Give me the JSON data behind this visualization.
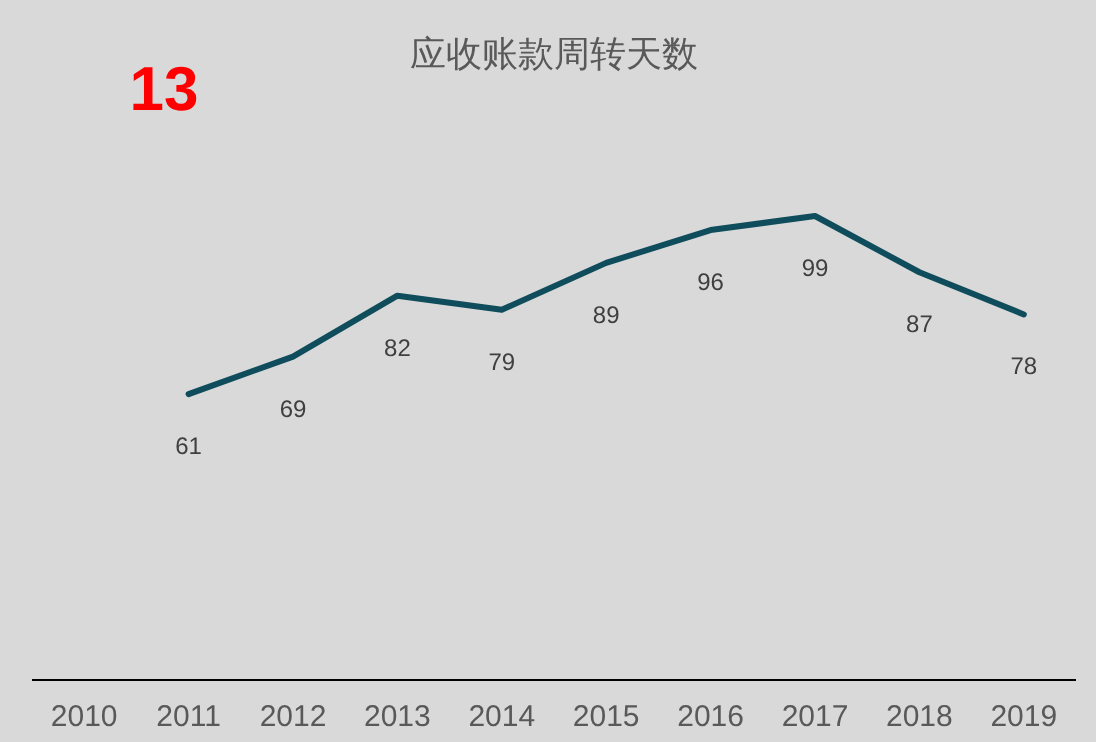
{
  "chart_data": {
    "type": "line",
    "title": "应收账款周转天数",
    "annotations": [
      "13"
    ],
    "categories": [
      "2010",
      "2011",
      "2012",
      "2013",
      "2014",
      "2015",
      "2016",
      "2017",
      "2018",
      "2019"
    ],
    "series": [
      {
        "color": "#0f4c5c",
        "values": [
          null,
          61,
          69,
          82,
          79,
          89,
          96,
          99,
          87,
          78
        ]
      }
    ],
    "data_labels": true,
    "marker": "none",
    "line_style": "solid"
  }
}
